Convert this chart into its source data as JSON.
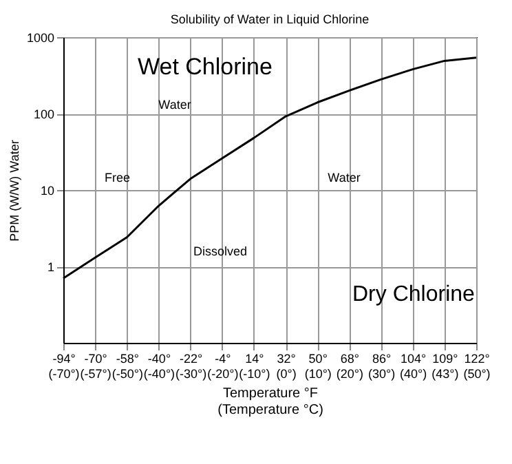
{
  "chart_data": {
    "type": "line",
    "title": "Solubility of Water in Liquid Chlorine",
    "xlabel": "Temperature °F\n(Temperature °C)",
    "ylabel": "PPM (W/W) Water",
    "categories": [
      "-94°\n(-70°)",
      "-70°\n(-57°)",
      "-58°\n(-50°)",
      "-40°\n(-40°)",
      "-22°\n(-30°)",
      "-4°\n(-20°)",
      "14°\n(-10°)",
      "32°\n(0°)",
      "50°\n(10°)",
      "68°\n(20°)",
      "86°\n(30°)",
      "104°\n(40°)",
      "109°\n(43°)",
      "122°\n(50°)"
    ],
    "series": [
      {
        "color": "#000000",
        "values": [
          0.7,
          1.3,
          2.4,
          6.2,
          14,
          26,
          48,
          92,
          140,
          200,
          280,
          380,
          490,
          540
        ]
      }
    ],
    "log": true,
    "ylim": [
      0.1,
      1000
    ],
    "yticks": [
      1,
      10,
      100,
      1000
    ],
    "grid": true,
    "marker": "none",
    "line_style": "solid",
    "annotations": [
      "Wet Chlorine",
      "Water",
      "Free",
      "Water",
      "Dissolved",
      "Dry Chlorine"
    ]
  }
}
